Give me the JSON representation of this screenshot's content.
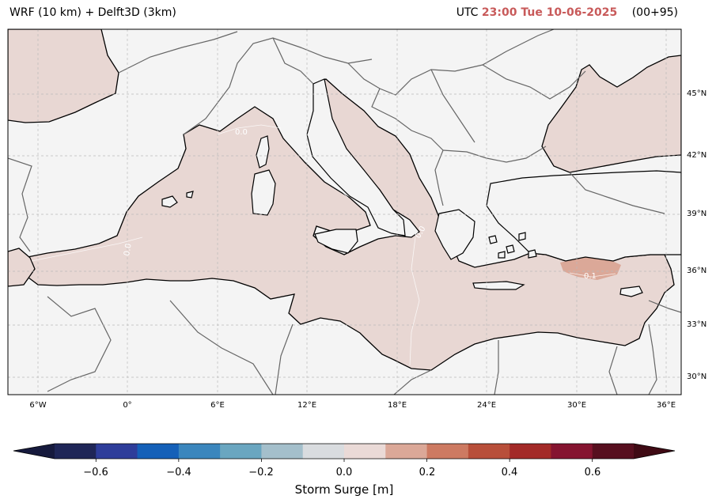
{
  "header": {
    "model": "WRF (10 km) + Delft3D (3km)",
    "utc_prefix": "UTC",
    "datetime": "23:00 Tue 10-06-2025",
    "run_offset": "(00+95)"
  },
  "map": {
    "lat_labels": [
      "45°N",
      "42°N",
      "39°N",
      "36°N",
      "33°N",
      "30°N"
    ],
    "lon_labels": [
      "6°W",
      "0°",
      "6°E",
      "12°E",
      "18°E",
      "24°E",
      "30°E",
      "36°E"
    ],
    "contour_labels": [
      "0.0",
      "0.0",
      "0.1",
      "0.0"
    ],
    "colors": {
      "sea": "#e8d7d3",
      "land": "#f4f4f4",
      "coast": "#000000",
      "border": "#666666",
      "grid": "#bbbbbb",
      "surge_high": "#dba898"
    }
  },
  "colorbar": {
    "ticks": [
      "−0.6",
      "−0.4",
      "−0.2",
      "0.0",
      "0.2",
      "0.4",
      "0.6"
    ],
    "label": "Storm Surge [m]",
    "colors": [
      "#1f2657",
      "#2e3d9a",
      "#1560b8",
      "#3b86bd",
      "#6aa6c0",
      "#a4bfcb",
      "#d9dcdf",
      "#eadad7",
      "#dba898",
      "#cd7a62",
      "#b84f3a",
      "#a32a28",
      "#851430",
      "#570f1f"
    ],
    "extend_low": "#161a3d",
    "extend_high": "#3f0a14"
  }
}
